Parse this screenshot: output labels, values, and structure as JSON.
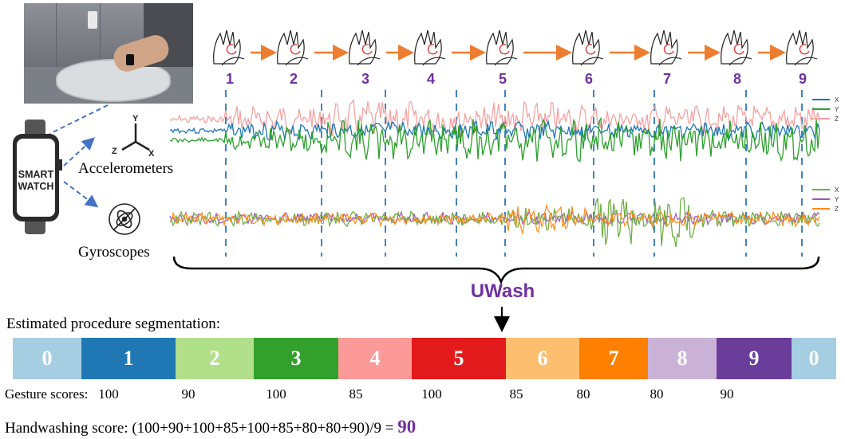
{
  "gesture_steps": [
    "1",
    "2",
    "3",
    "4",
    "5",
    "6",
    "7",
    "8",
    "9"
  ],
  "smartwatch": {
    "line1": "SMART",
    "line2": "WATCH"
  },
  "axes_icon": {
    "x": "X",
    "y": "Y",
    "z": "Z"
  },
  "sensors": {
    "accelerometers": "Accelerometers",
    "gyroscopes": "Gyroscopes"
  },
  "legend_accel": [
    {
      "label": "X",
      "color": "#1f77b4"
    },
    {
      "label": "Y",
      "color": "#2ca02c"
    },
    {
      "label": "Z",
      "color": "#f4a3a3"
    }
  ],
  "legend_gyro": [
    {
      "label": "X",
      "color": "#70ad47"
    },
    {
      "label": "Y",
      "color": "#9b59b6"
    },
    {
      "label": "Z",
      "color": "#ff8c1a"
    }
  ],
  "model_name": "UWash",
  "model_color": "#7030a0",
  "segmentation_title": "Estimated procedure segmentation",
  "segmentation_colon": ":",
  "segments": [
    {
      "label": "0",
      "color": "#a6cee3"
    },
    {
      "label": "1",
      "color": "#1f78b4"
    },
    {
      "label": "2",
      "color": "#b2df8a"
    },
    {
      "label": "3",
      "color": "#33a02c"
    },
    {
      "label": "4",
      "color": "#fb9a99"
    },
    {
      "label": "5",
      "color": "#e31a1c"
    },
    {
      "label": "6",
      "color": "#fdbf6f"
    },
    {
      "label": "7",
      "color": "#ff7f00"
    },
    {
      "label": "8",
      "color": "#cab2d6"
    },
    {
      "label": "9",
      "color": "#6a3d9a"
    },
    {
      "label": "0",
      "color": "#a6cee3"
    }
  ],
  "gesture_scores_label": "Gesture scores:",
  "gesture_scores": [
    "100",
    "90",
    "100",
    "85",
    "100",
    "85",
    "80",
    "80",
    "90"
  ],
  "handwashing_label": "Handwashing score:",
  "handwashing_formula": "(100+90+100+85+100+85+80+80+90)/9 =",
  "handwashing_result": "90",
  "accent_color": "#7030a0",
  "arrow_color": "#ed7d31",
  "dashed_color": "#2e75b6"
}
